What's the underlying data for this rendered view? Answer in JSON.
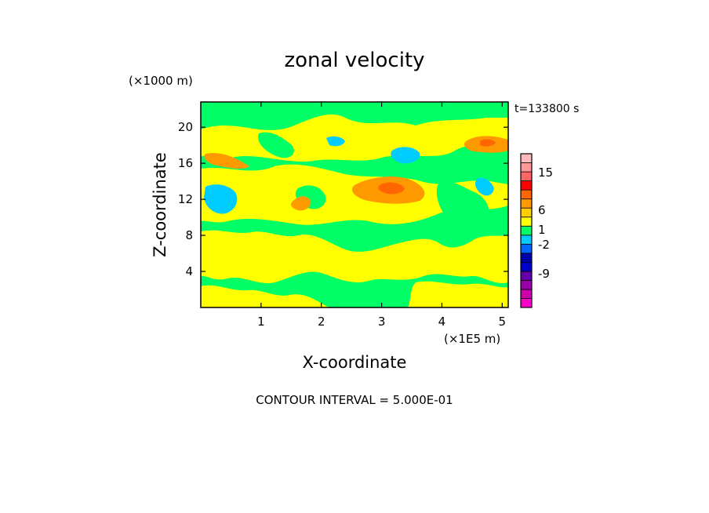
{
  "chart_data": {
    "type": "heatmap",
    "title": "zonal velocity",
    "xlabel": "X-coordinate",
    "ylabel": "Z-coordinate",
    "x_unit": "(×1E5 m)",
    "y_unit": "(×1000 m)",
    "time_label": "t=133800 s",
    "footer": "CONTOUR INTERVAL = 5.000E-01",
    "xlim": [
      0,
      5.1
    ],
    "ylim": [
      0,
      22.8
    ],
    "x_ticks": [
      1,
      2,
      3,
      4,
      5
    ],
    "y_ticks": [
      4,
      8,
      12,
      16,
      20
    ],
    "colorbar": {
      "labels": [
        {
          "value": 15,
          "text": "15"
        },
        {
          "value": 6,
          "text": "6"
        },
        {
          "value": 1,
          "text": "1"
        },
        {
          "value": -2,
          "text": "-2"
        },
        {
          "value": -9,
          "text": "-9"
        }
      ],
      "bands": [
        {
          "color": "#ff00cc"
        },
        {
          "color": "#cc00aa"
        },
        {
          "color": "#9900aa"
        },
        {
          "color": "#6600aa"
        },
        {
          "color": "#0000cc"
        },
        {
          "color": "#0000aa"
        },
        {
          "color": "#0066ff"
        },
        {
          "color": "#00ccff"
        },
        {
          "color": "#00ff66"
        },
        {
          "color": "#ffff00"
        },
        {
          "color": "#ffcc00"
        },
        {
          "color": "#ff9900"
        },
        {
          "color": "#ff6600"
        },
        {
          "color": "#ff0000"
        },
        {
          "color": "#ff6666"
        },
        {
          "color": "#ff9999"
        },
        {
          "color": "#ffbbbb"
        }
      ]
    },
    "field_colors": {
      "background": "#00ff66",
      "positive": "#ffff00",
      "strong_positive": "#ff9900",
      "core_positive": "#ff6600",
      "negative": "#00ccff"
    }
  }
}
